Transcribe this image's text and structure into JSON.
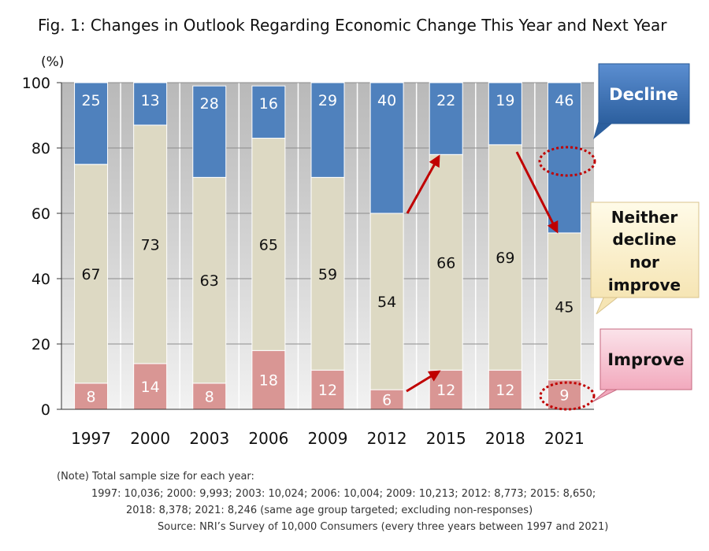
{
  "chart_data": {
    "type": "bar",
    "stacked": true,
    "title": "Fig. 1: Changes in Outlook Regarding Economic Change This Year and Next Year",
    "y_unit": "(%)",
    "ylim": [
      0,
      100
    ],
    "y_ticks": [
      "0",
      "20",
      "40",
      "60",
      "80",
      "100"
    ],
    "grid": true,
    "categories": [
      "1997",
      "2000",
      "2003",
      "2006",
      "2009",
      "2012",
      "2015",
      "2018",
      "2021"
    ],
    "series": [
      {
        "name": "Improve",
        "values": [
          8,
          14,
          8,
          18,
          12,
          6,
          12,
          12,
          9
        ],
        "color": "#d99694"
      },
      {
        "name": "Neither decline nor improve",
        "values": [
          67,
          73,
          63,
          65,
          59,
          54,
          66,
          69,
          45
        ],
        "color": "#ddd9c3"
      },
      {
        "name": "Decline",
        "values": [
          25,
          13,
          28,
          16,
          29,
          40,
          22,
          19,
          46
        ],
        "color": "#4f81bd"
      }
    ],
    "callouts": {
      "decline": "Decline",
      "neither": [
        "Neither",
        "decline",
        "nor",
        "improve"
      ],
      "improve": "Improve"
    }
  },
  "notes": {
    "line1": "(Note) Total sample size for each year:",
    "line2": "1997: 10,036; 2000: 9,993; 2003: 10,024; 2006: 10,004; 2009: 10,213; 2012: 8,773; 2015: 8,650;",
    "line3": "2018: 8,378; 2021: 8,246 (same age group targeted; excluding non-responses)",
    "line4": "Source: NRI’s Survey of 10,000 Consumers (every three years between 1997 and 2021)"
  }
}
